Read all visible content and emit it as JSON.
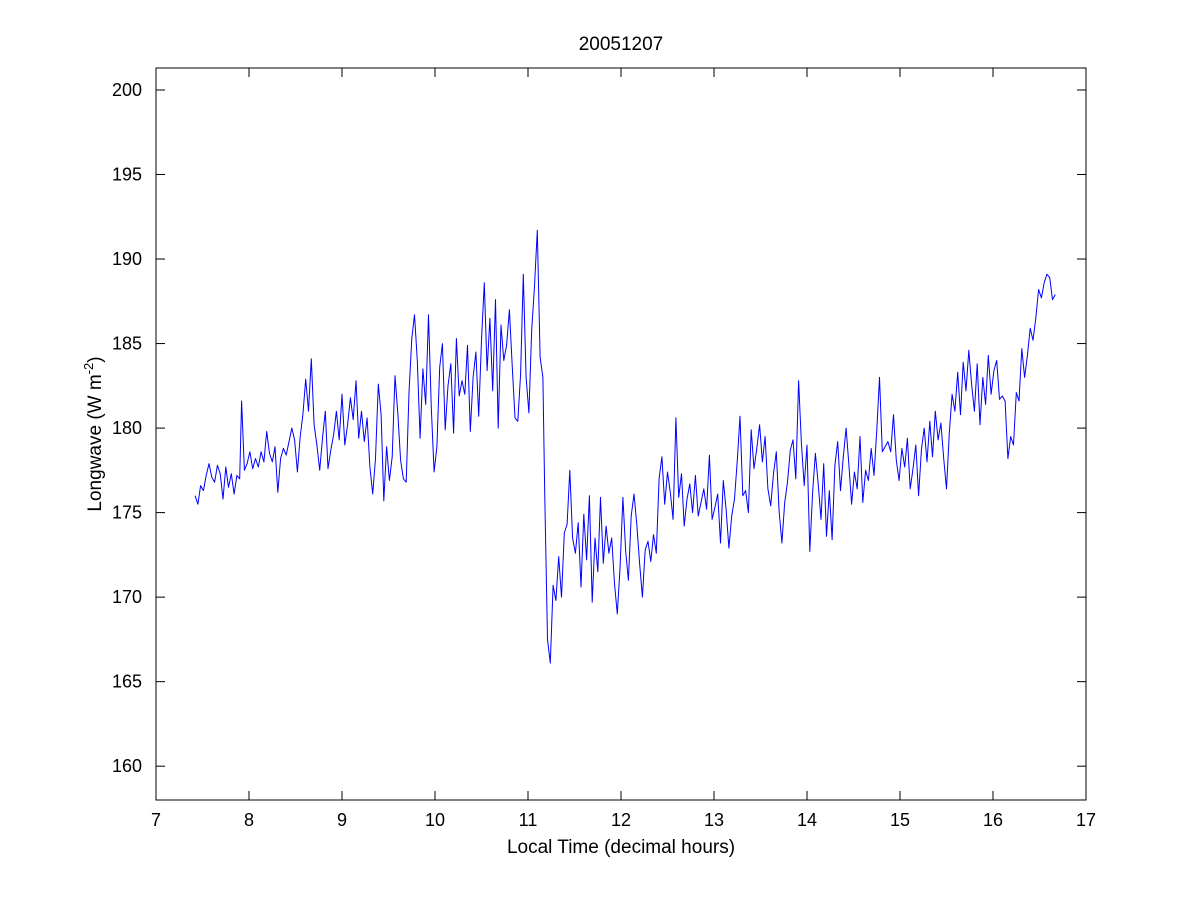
{
  "chart_data": {
    "type": "line",
    "title": "20051207",
    "xlabel": "Local Time (decimal hours)",
    "ylabel": {
      "base": "Longwave (W m",
      "superscript": "-2",
      "suffix": ")"
    },
    "xlim": [
      7,
      17
    ],
    "ylim": [
      158,
      201.3
    ],
    "xticks": [
      7,
      8,
      9,
      10,
      11,
      12,
      13,
      14,
      15,
      16,
      17
    ],
    "yticks": [
      160,
      165,
      170,
      175,
      180,
      185,
      190,
      195,
      200
    ],
    "grid": false,
    "line_color": "#0000ff",
    "series": [
      {
        "points": [
          [
            7.42,
            176.0
          ],
          [
            7.45,
            175.5
          ],
          [
            7.48,
            176.6
          ],
          [
            7.51,
            176.3
          ],
          [
            7.54,
            177.2
          ],
          [
            7.57,
            177.9
          ],
          [
            7.6,
            177.1
          ],
          [
            7.63,
            176.8
          ],
          [
            7.66,
            177.8
          ],
          [
            7.69,
            177.3
          ],
          [
            7.72,
            175.8
          ],
          [
            7.75,
            177.7
          ],
          [
            7.78,
            176.5
          ],
          [
            7.81,
            177.3
          ],
          [
            7.84,
            176.1
          ],
          [
            7.87,
            177.2
          ],
          [
            7.9,
            177.0
          ],
          [
            7.92,
            181.6
          ],
          [
            7.95,
            177.5
          ],
          [
            7.98,
            177.9
          ],
          [
            8.01,
            178.6
          ],
          [
            8.04,
            177.6
          ],
          [
            8.07,
            178.2
          ],
          [
            8.1,
            177.7
          ],
          [
            8.13,
            178.6
          ],
          [
            8.16,
            178.0
          ],
          [
            8.19,
            179.8
          ],
          [
            8.22,
            178.5
          ],
          [
            8.25,
            178.0
          ],
          [
            8.28,
            178.9
          ],
          [
            8.31,
            176.2
          ],
          [
            8.34,
            178.2
          ],
          [
            8.37,
            178.8
          ],
          [
            8.4,
            178.4
          ],
          [
            8.43,
            179.2
          ],
          [
            8.46,
            180.0
          ],
          [
            8.49,
            179.3
          ],
          [
            8.52,
            177.4
          ],
          [
            8.55,
            179.5
          ],
          [
            8.58,
            180.8
          ],
          [
            8.61,
            182.9
          ],
          [
            8.64,
            181.0
          ],
          [
            8.67,
            184.1
          ],
          [
            8.7,
            180.2
          ],
          [
            8.73,
            179.0
          ],
          [
            8.76,
            177.5
          ],
          [
            8.79,
            179.4
          ],
          [
            8.82,
            181.0
          ],
          [
            8.85,
            177.6
          ],
          [
            8.88,
            178.7
          ],
          [
            8.91,
            179.6
          ],
          [
            8.94,
            181.0
          ],
          [
            8.97,
            179.3
          ],
          [
            9.0,
            182.0
          ],
          [
            9.03,
            179.0
          ],
          [
            9.06,
            180.2
          ],
          [
            9.09,
            181.8
          ],
          [
            9.12,
            180.5
          ],
          [
            9.15,
            182.8
          ],
          [
            9.18,
            179.4
          ],
          [
            9.21,
            181.0
          ],
          [
            9.24,
            179.2
          ],
          [
            9.27,
            180.6
          ],
          [
            9.3,
            177.7
          ],
          [
            9.33,
            176.1
          ],
          [
            9.36,
            178.2
          ],
          [
            9.39,
            182.6
          ],
          [
            9.42,
            180.8
          ],
          [
            9.45,
            175.7
          ],
          [
            9.48,
            178.9
          ],
          [
            9.51,
            176.9
          ],
          [
            9.54,
            178.3
          ],
          [
            9.57,
            183.1
          ],
          [
            9.6,
            180.9
          ],
          [
            9.63,
            178.1
          ],
          [
            9.66,
            177.0
          ],
          [
            9.69,
            176.8
          ],
          [
            9.72,
            182.1
          ],
          [
            9.75,
            185.3
          ],
          [
            9.78,
            186.7
          ],
          [
            9.81,
            184.0
          ],
          [
            9.84,
            179.4
          ],
          [
            9.87,
            183.5
          ],
          [
            9.9,
            181.4
          ],
          [
            9.93,
            186.7
          ],
          [
            9.96,
            181.2
          ],
          [
            9.99,
            177.4
          ],
          [
            10.02,
            178.9
          ],
          [
            10.05,
            183.6
          ],
          [
            10.08,
            185.0
          ],
          [
            10.11,
            179.9
          ],
          [
            10.14,
            182.5
          ],
          [
            10.17,
            183.8
          ],
          [
            10.2,
            179.7
          ],
          [
            10.23,
            185.3
          ],
          [
            10.26,
            181.9
          ],
          [
            10.29,
            182.8
          ],
          [
            10.32,
            182.0
          ],
          [
            10.35,
            184.9
          ],
          [
            10.38,
            179.8
          ],
          [
            10.41,
            183.0
          ],
          [
            10.44,
            184.5
          ],
          [
            10.47,
            180.7
          ],
          [
            10.5,
            185.2
          ],
          [
            10.53,
            188.6
          ],
          [
            10.56,
            183.4
          ],
          [
            10.59,
            186.5
          ],
          [
            10.62,
            182.2
          ],
          [
            10.65,
            187.6
          ],
          [
            10.68,
            180.0
          ],
          [
            10.71,
            186.1
          ],
          [
            10.74,
            184.0
          ],
          [
            10.77,
            184.9
          ],
          [
            10.8,
            187.0
          ],
          [
            10.83,
            183.7
          ],
          [
            10.86,
            180.6
          ],
          [
            10.89,
            180.4
          ],
          [
            10.92,
            183.2
          ],
          [
            10.95,
            189.1
          ],
          [
            10.98,
            183.0
          ],
          [
            11.01,
            180.9
          ],
          [
            11.04,
            185.8
          ],
          [
            11.07,
            188.4
          ],
          [
            11.1,
            191.7
          ],
          [
            11.13,
            184.2
          ],
          [
            11.16,
            183.0
          ],
          [
            11.18,
            176.2
          ],
          [
            11.21,
            167.5
          ],
          [
            11.24,
            166.1
          ],
          [
            11.27,
            170.7
          ],
          [
            11.3,
            169.8
          ],
          [
            11.33,
            172.4
          ],
          [
            11.36,
            170.0
          ],
          [
            11.39,
            173.8
          ],
          [
            11.42,
            174.3
          ],
          [
            11.45,
            177.5
          ],
          [
            11.48,
            173.5
          ],
          [
            11.51,
            172.6
          ],
          [
            11.54,
            174.4
          ],
          [
            11.57,
            170.6
          ],
          [
            11.6,
            174.9
          ],
          [
            11.63,
            172.2
          ],
          [
            11.66,
            176.0
          ],
          [
            11.69,
            169.7
          ],
          [
            11.72,
            173.5
          ],
          [
            11.75,
            171.5
          ],
          [
            11.78,
            175.9
          ],
          [
            11.81,
            172.0
          ],
          [
            11.84,
            174.2
          ],
          [
            11.87,
            172.6
          ],
          [
            11.9,
            173.5
          ],
          [
            11.93,
            170.8
          ],
          [
            11.96,
            169.0
          ],
          [
            11.99,
            171.8
          ],
          [
            12.02,
            175.9
          ],
          [
            12.05,
            172.7
          ],
          [
            12.08,
            171.0
          ],
          [
            12.11,
            174.8
          ],
          [
            12.14,
            176.1
          ],
          [
            12.17,
            174.3
          ],
          [
            12.2,
            172.0
          ],
          [
            12.23,
            170.0
          ],
          [
            12.26,
            172.8
          ],
          [
            12.29,
            173.3
          ],
          [
            12.32,
            172.1
          ],
          [
            12.35,
            173.7
          ],
          [
            12.38,
            172.6
          ],
          [
            12.41,
            177.0
          ],
          [
            12.44,
            178.3
          ],
          [
            12.47,
            175.5
          ],
          [
            12.5,
            177.4
          ],
          [
            12.53,
            176.2
          ],
          [
            12.56,
            174.6
          ],
          [
            12.59,
            180.6
          ],
          [
            12.62,
            175.9
          ],
          [
            12.65,
            177.3
          ],
          [
            12.68,
            174.2
          ],
          [
            12.71,
            175.8
          ],
          [
            12.74,
            176.7
          ],
          [
            12.77,
            175.0
          ],
          [
            12.8,
            177.2
          ],
          [
            12.83,
            174.8
          ],
          [
            12.86,
            175.6
          ],
          [
            12.89,
            176.4
          ],
          [
            12.92,
            175.2
          ],
          [
            12.95,
            178.4
          ],
          [
            12.98,
            174.6
          ],
          [
            13.01,
            175.3
          ],
          [
            13.04,
            176.1
          ],
          [
            13.07,
            173.2
          ],
          [
            13.1,
            176.9
          ],
          [
            13.13,
            175.2
          ],
          [
            13.16,
            172.9
          ],
          [
            13.19,
            174.8
          ],
          [
            13.22,
            175.8
          ],
          [
            13.25,
            178.1
          ],
          [
            13.28,
            180.7
          ],
          [
            13.31,
            176.0
          ],
          [
            13.34,
            176.3
          ],
          [
            13.37,
            175.0
          ],
          [
            13.4,
            179.9
          ],
          [
            13.43,
            177.6
          ],
          [
            13.46,
            178.8
          ],
          [
            13.49,
            180.2
          ],
          [
            13.52,
            178.0
          ],
          [
            13.55,
            179.5
          ],
          [
            13.58,
            176.4
          ],
          [
            13.61,
            175.4
          ],
          [
            13.64,
            177.3
          ],
          [
            13.67,
            178.6
          ],
          [
            13.7,
            175.1
          ],
          [
            13.73,
            173.2
          ],
          [
            13.76,
            175.6
          ],
          [
            13.79,
            176.8
          ],
          [
            13.82,
            178.7
          ],
          [
            13.85,
            179.3
          ],
          [
            13.88,
            177.0
          ],
          [
            13.91,
            182.8
          ],
          [
            13.94,
            179.1
          ],
          [
            13.97,
            176.6
          ],
          [
            14.0,
            179.0
          ],
          [
            14.03,
            172.7
          ],
          [
            14.06,
            176.2
          ],
          [
            14.09,
            178.5
          ],
          [
            14.12,
            176.7
          ],
          [
            14.15,
            174.6
          ],
          [
            14.18,
            177.9
          ],
          [
            14.21,
            173.6
          ],
          [
            14.24,
            176.3
          ],
          [
            14.27,
            173.4
          ],
          [
            14.3,
            177.8
          ],
          [
            14.33,
            179.2
          ],
          [
            14.36,
            176.3
          ],
          [
            14.39,
            178.3
          ],
          [
            14.42,
            180.0
          ],
          [
            14.45,
            177.9
          ],
          [
            14.48,
            175.5
          ],
          [
            14.51,
            177.4
          ],
          [
            14.54,
            176.4
          ],
          [
            14.57,
            179.5
          ],
          [
            14.6,
            175.6
          ],
          [
            14.63,
            177.5
          ],
          [
            14.66,
            176.9
          ],
          [
            14.69,
            178.8
          ],
          [
            14.72,
            177.2
          ],
          [
            14.75,
            179.9
          ],
          [
            14.78,
            183.0
          ],
          [
            14.81,
            178.6
          ],
          [
            14.84,
            178.9
          ],
          [
            14.87,
            179.2
          ],
          [
            14.9,
            178.6
          ],
          [
            14.93,
            180.8
          ],
          [
            14.96,
            178.1
          ],
          [
            14.99,
            176.9
          ],
          [
            15.02,
            178.8
          ],
          [
            15.05,
            177.7
          ],
          [
            15.08,
            179.4
          ],
          [
            15.11,
            176.4
          ],
          [
            15.14,
            177.6
          ],
          [
            15.17,
            179.0
          ],
          [
            15.2,
            176.0
          ],
          [
            15.23,
            178.7
          ],
          [
            15.26,
            180.0
          ],
          [
            15.29,
            178.0
          ],
          [
            15.32,
            180.4
          ],
          [
            15.35,
            178.3
          ],
          [
            15.38,
            181.0
          ],
          [
            15.41,
            179.3
          ],
          [
            15.44,
            180.3
          ],
          [
            15.47,
            178.2
          ],
          [
            15.5,
            176.4
          ],
          [
            15.53,
            179.7
          ],
          [
            15.56,
            182.0
          ],
          [
            15.59,
            181.0
          ],
          [
            15.62,
            183.3
          ],
          [
            15.65,
            180.8
          ],
          [
            15.68,
            183.9
          ],
          [
            15.71,
            182.2
          ],
          [
            15.74,
            184.6
          ],
          [
            15.77,
            182.6
          ],
          [
            15.8,
            181.0
          ],
          [
            15.83,
            183.8
          ],
          [
            15.86,
            180.2
          ],
          [
            15.89,
            183.0
          ],
          [
            15.92,
            181.4
          ],
          [
            15.95,
            184.3
          ],
          [
            15.98,
            182.0
          ],
          [
            16.01,
            183.4
          ],
          [
            16.04,
            184.0
          ],
          [
            16.07,
            181.7
          ],
          [
            16.1,
            181.9
          ],
          [
            16.13,
            181.6
          ],
          [
            16.16,
            178.2
          ],
          [
            16.19,
            179.5
          ],
          [
            16.22,
            179.0
          ],
          [
            16.25,
            182.1
          ],
          [
            16.28,
            181.6
          ],
          [
            16.31,
            184.7
          ],
          [
            16.34,
            183.0
          ],
          [
            16.37,
            184.3
          ],
          [
            16.4,
            185.9
          ],
          [
            16.43,
            185.2
          ],
          [
            16.46,
            186.5
          ],
          [
            16.49,
            188.2
          ],
          [
            16.52,
            187.7
          ],
          [
            16.55,
            188.6
          ],
          [
            16.58,
            189.1
          ],
          [
            16.61,
            188.9
          ],
          [
            16.64,
            187.6
          ],
          [
            16.67,
            187.9
          ]
        ]
      }
    ]
  }
}
